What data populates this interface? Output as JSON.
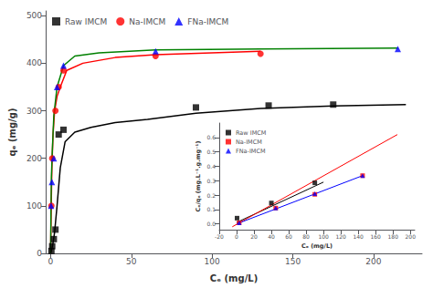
{
  "chart_data": [
    {
      "type": "scatter",
      "xlabel": "Cₑ (mg/L)",
      "ylabel": "qₑ (mg/g)",
      "xlim": [
        -3,
        230
      ],
      "ylim": [
        0,
        510
      ],
      "xticks": [
        0,
        50,
        100,
        150,
        200
      ],
      "yticks": [
        0,
        100,
        200,
        300,
        400,
        500
      ],
      "grid": false,
      "legend": "upper left",
      "series": [
        {
          "type": "line",
          "color": "black",
          "x": [
            0,
            0.3,
            0.8,
            1.5,
            2.5,
            4,
            6,
            9,
            15,
            25,
            40,
            60,
            90,
            130,
            175,
            220
          ],
          "values": [
            0,
            3,
            10,
            22,
            45,
            100,
            180,
            235,
            255,
            265,
            275,
            282,
            295,
            305,
            310,
            313
          ]
        },
        {
          "type": "line",
          "color": "red",
          "x": [
            0,
            0.3,
            0.8,
            1.5,
            2.5,
            4,
            6,
            10,
            20,
            40,
            65,
            130
          ],
          "values": [
            0,
            80,
            180,
            250,
            300,
            330,
            350,
            385,
            400,
            412,
            418,
            425
          ]
        },
        {
          "type": "line",
          "color": "green",
          "x": [
            0,
            0.2,
            0.5,
            1,
            2,
            4,
            8,
            15,
            30,
            65,
            130,
            215
          ],
          "values": [
            0,
            80,
            160,
            210,
            290,
            350,
            395,
            415,
            422,
            428,
            430,
            432
          ]
        },
        {
          "type": "scatter",
          "name": "Raw IMCM",
          "color": "black",
          "marker": "square",
          "x": [
            0.5,
            1,
            2,
            3,
            5,
            8,
            90,
            135,
            175
          ],
          "values": [
            5,
            15,
            30,
            50,
            250,
            260,
            307,
            311,
            313
          ]
        },
        {
          "type": "scatter",
          "name": "Na-IMCM",
          "color": "red",
          "marker": "circle",
          "x": [
            0.5,
            1,
            3,
            5,
            8,
            65,
            130
          ],
          "values": [
            100,
            200,
            300,
            350,
            385,
            415,
            420
          ]
        },
        {
          "type": "scatter",
          "name": "FNa-IMCM",
          "color": "blue",
          "marker": "triangle",
          "x": [
            0.3,
            0.8,
            2,
            4,
            8,
            65,
            215
          ],
          "values": [
            100,
            150,
            200,
            350,
            395,
            425,
            430
          ]
        }
      ]
    },
    {
      "type": "scatter",
      "xlabel": "Cₑ (mg/L)",
      "ylabel": "Cₑ/qₑ (mg.L⁻¹.g.mg⁻¹)",
      "xlim": [
        -20,
        205
      ],
      "ylim": [
        -0.04,
        0.7
      ],
      "xticks": [
        -20,
        0,
        20,
        40,
        60,
        80,
        100,
        120,
        140,
        160,
        180,
        200
      ],
      "yticks": [
        {
          "value": 0.0,
          "label": "0.0"
        },
        0.1,
        0.2,
        0.3,
        0.4,
        0.5,
        0.6
      ],
      "grid": false,
      "legend": "upper left",
      "series": [
        {
          "type": "line",
          "color": "black",
          "x": [
            0,
            100
          ],
          "values": [
            0.01,
            0.29
          ]
        },
        {
          "type": "line",
          "color": "red",
          "x": [
            -5,
            185
          ],
          "values": [
            -0.02,
            0.62
          ]
        },
        {
          "type": "line",
          "color": "blue",
          "x": [
            0,
            145
          ],
          "values": [
            0.0,
            0.335
          ]
        },
        {
          "type": "scatter",
          "name": "Raw IMCM",
          "color": "black",
          "marker": "square",
          "x": [
            0.5,
            40,
            90
          ],
          "values": [
            0.04,
            0.145,
            0.285
          ]
        },
        {
          "type": "scatter",
          "name": "Na-IMCM",
          "color": "red",
          "marker": "square",
          "x": [
            3,
            45,
            90,
            145
          ],
          "values": [
            0.008,
            0.11,
            0.205,
            0.335
          ]
        },
        {
          "type": "scatter",
          "name": "FNa-IMCM",
          "color": "blue",
          "marker": "triangle",
          "x": [
            3,
            45,
            90,
            145
          ],
          "values": [
            0.008,
            0.11,
            0.21,
            0.335
          ]
        }
      ]
    }
  ]
}
